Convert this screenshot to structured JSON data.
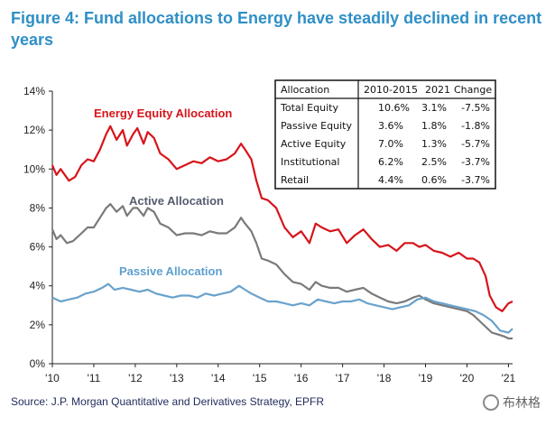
{
  "title": "Figure 4: Fund allocations to Energy have steadily declined in recent years",
  "source": "Source: J.P. Morgan Quantitative and Derivatives Strategy, EPFR",
  "watermark": "布林格",
  "colors": {
    "energy": "#d7141a",
    "active": "#7a7a7a",
    "passive": "#6aa2cc",
    "title": "#2f8fc7"
  },
  "chart_data": {
    "type": "line",
    "title": "Figure 4: Fund allocations to Energy have steadily declined in recent years",
    "xlabel": "",
    "ylabel": "",
    "xlim": [
      2010,
      2021.1
    ],
    "ylim": [
      0,
      14
    ],
    "y_ticks": [
      "0%",
      "2%",
      "4%",
      "6%",
      "8%",
      "10%",
      "12%",
      "14%"
    ],
    "x_ticks": [
      "'10",
      "'11",
      "'12",
      "'13",
      "'14",
      "'15",
      "'16",
      "'17",
      "'18",
      "'19",
      "'20",
      "'21"
    ],
    "series": [
      {
        "name": "Energy Equity Allocation",
        "color": "#d7141a",
        "x": [
          2010.0,
          2010.1,
          2010.2,
          2010.4,
          2010.55,
          2010.7,
          2010.85,
          2011.0,
          2011.15,
          2011.3,
          2011.4,
          2011.55,
          2011.7,
          2011.8,
          2011.95,
          2012.05,
          2012.2,
          2012.3,
          2012.45,
          2012.6,
          2012.8,
          2013.0,
          2013.2,
          2013.4,
          2013.6,
          2013.8,
          2014.0,
          2014.2,
          2014.4,
          2014.55,
          2014.65,
          2014.8,
          2014.92,
          2015.05,
          2015.2,
          2015.4,
          2015.6,
          2015.8,
          2016.0,
          2016.2,
          2016.35,
          2016.5,
          2016.7,
          2016.9,
          2017.1,
          2017.3,
          2017.5,
          2017.7,
          2017.9,
          2018.1,
          2018.3,
          2018.5,
          2018.7,
          2018.85,
          2019.0,
          2019.2,
          2019.4,
          2019.6,
          2019.8,
          2020.0,
          2020.15,
          2020.3,
          2020.45,
          2020.55,
          2020.7,
          2020.85,
          2021.0,
          2021.1
        ],
        "values": [
          10.2,
          9.7,
          10.0,
          9.4,
          9.6,
          10.2,
          10.5,
          10.4,
          11.0,
          11.8,
          12.2,
          11.5,
          12.0,
          11.2,
          11.8,
          12.1,
          11.3,
          11.9,
          11.6,
          10.8,
          10.5,
          10.0,
          10.2,
          10.4,
          10.3,
          10.6,
          10.4,
          10.5,
          10.8,
          11.3,
          11.0,
          10.5,
          9.4,
          8.5,
          8.4,
          8.0,
          7.0,
          6.5,
          6.8,
          6.2,
          7.2,
          7.0,
          6.8,
          6.9,
          6.2,
          6.6,
          6.9,
          6.4,
          6.0,
          6.1,
          5.8,
          6.2,
          6.2,
          6.0,
          6.1,
          5.8,
          5.7,
          5.5,
          5.7,
          5.4,
          5.4,
          5.2,
          4.5,
          3.5,
          2.9,
          2.7,
          3.1,
          3.2
        ]
      },
      {
        "name": "Active Allocation",
        "color": "#7a7a7a",
        "x": [
          2010.0,
          2010.1,
          2010.2,
          2010.35,
          2010.5,
          2010.7,
          2010.85,
          2011.0,
          2011.15,
          2011.3,
          2011.4,
          2011.55,
          2011.7,
          2011.8,
          2011.95,
          2012.05,
          2012.2,
          2012.3,
          2012.45,
          2012.6,
          2012.8,
          2013.0,
          2013.2,
          2013.4,
          2013.6,
          2013.8,
          2014.0,
          2014.2,
          2014.4,
          2014.55,
          2014.65,
          2014.8,
          2014.92,
          2015.05,
          2015.2,
          2015.4,
          2015.6,
          2015.8,
          2016.0,
          2016.2,
          2016.35,
          2016.5,
          2016.7,
          2016.9,
          2017.1,
          2017.3,
          2017.5,
          2017.7,
          2017.9,
          2018.1,
          2018.3,
          2018.5,
          2018.7,
          2018.85,
          2019.0,
          2019.2,
          2019.4,
          2019.6,
          2019.8,
          2020.0,
          2020.15,
          2020.3,
          2020.45,
          2020.6,
          2020.75,
          2020.9,
          2021.0,
          2021.1
        ],
        "values": [
          6.9,
          6.4,
          6.6,
          6.2,
          6.3,
          6.7,
          7.0,
          7.0,
          7.5,
          8.0,
          8.2,
          7.8,
          8.1,
          7.6,
          8.0,
          8.0,
          7.6,
          8.0,
          7.8,
          7.2,
          7.0,
          6.6,
          6.7,
          6.7,
          6.6,
          6.8,
          6.7,
          6.7,
          7.0,
          7.5,
          7.2,
          6.8,
          6.2,
          5.4,
          5.3,
          5.1,
          4.6,
          4.2,
          4.1,
          3.8,
          4.2,
          4.0,
          3.9,
          3.9,
          3.7,
          3.8,
          3.9,
          3.6,
          3.4,
          3.2,
          3.1,
          3.2,
          3.4,
          3.5,
          3.3,
          3.1,
          3.0,
          2.9,
          2.8,
          2.7,
          2.5,
          2.2,
          1.9,
          1.6,
          1.5,
          1.4,
          1.3,
          1.3
        ]
      },
      {
        "name": "Passive Allocation",
        "color": "#6aa2cc",
        "x": [
          2010.0,
          2010.2,
          2010.4,
          2010.6,
          2010.8,
          2011.0,
          2011.2,
          2011.35,
          2011.5,
          2011.7,
          2011.9,
          2012.1,
          2012.3,
          2012.5,
          2012.7,
          2012.9,
          2013.1,
          2013.3,
          2013.5,
          2013.7,
          2013.9,
          2014.1,
          2014.3,
          2014.5,
          2014.65,
          2014.8,
          2015.0,
          2015.2,
          2015.4,
          2015.6,
          2015.8,
          2016.0,
          2016.2,
          2016.4,
          2016.6,
          2016.8,
          2017.0,
          2017.2,
          2017.4,
          2017.6,
          2017.8,
          2018.0,
          2018.2,
          2018.4,
          2018.6,
          2018.8,
          2019.0,
          2019.2,
          2019.4,
          2019.6,
          2019.8,
          2020.0,
          2020.2,
          2020.4,
          2020.6,
          2020.8,
          2021.0,
          2021.1
        ],
        "values": [
          3.4,
          3.2,
          3.3,
          3.4,
          3.6,
          3.7,
          3.9,
          4.1,
          3.8,
          3.9,
          3.8,
          3.7,
          3.8,
          3.6,
          3.5,
          3.4,
          3.5,
          3.5,
          3.4,
          3.6,
          3.5,
          3.6,
          3.7,
          4.0,
          3.8,
          3.6,
          3.4,
          3.2,
          3.2,
          3.1,
          3.0,
          3.1,
          3.0,
          3.3,
          3.2,
          3.1,
          3.2,
          3.2,
          3.3,
          3.1,
          3.0,
          2.9,
          2.8,
          2.9,
          3.0,
          3.3,
          3.4,
          3.2,
          3.1,
          3.0,
          2.9,
          2.8,
          2.7,
          2.5,
          2.2,
          1.7,
          1.6,
          1.8
        ]
      }
    ],
    "annotations": [
      "Energy Equity Allocation",
      "Active Allocation",
      "Passive Allocation"
    ],
    "table": {
      "headers": [
        "Allocation",
        "2010-2015",
        "2021",
        "Change"
      ],
      "rows": [
        [
          "Total Equity",
          "10.6%",
          "3.1%",
          "-7.5%"
        ],
        [
          "Passive Equity",
          "3.6%",
          "1.8%",
          "-1.8%"
        ],
        [
          "Active Equity",
          "7.0%",
          "1.3%",
          "-5.7%"
        ],
        [
          "Institutional",
          "6.2%",
          "2.5%",
          "-3.7%"
        ],
        [
          "Retail",
          "4.4%",
          "0.6%",
          "-3.7%"
        ]
      ]
    }
  }
}
